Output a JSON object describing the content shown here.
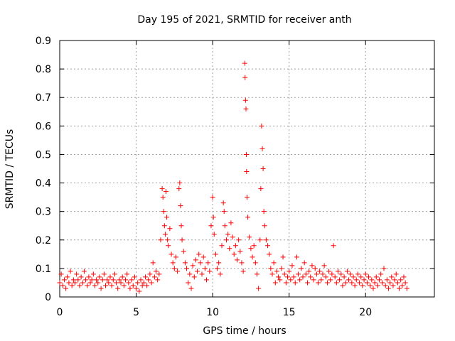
{
  "chart_data": {
    "type": "scatter",
    "title": "Day 195 of 2021, SRMTID for receiver anth",
    "xlabel": "GPS time / hours",
    "ylabel": "SRMTID / TECUs",
    "xlim": [
      0,
      24.5
    ],
    "ylim": [
      0,
      0.9
    ],
    "xticks": [
      0,
      5,
      10,
      15,
      20
    ],
    "xtick_labels": [
      "0",
      "5",
      "10",
      "15",
      "20"
    ],
    "yticks": [
      0,
      0.1,
      0.2,
      0.3,
      0.4,
      0.5,
      0.6,
      0.7,
      0.8,
      0.9
    ],
    "ytick_labels": [
      "0",
      "0.1",
      "0.2",
      "0.3",
      "0.4",
      "0.5",
      "0.6",
      "0.7",
      "0.8",
      "0.9"
    ],
    "grid": true,
    "marker": "+",
    "color": "#ff0000",
    "series": [
      {
        "name": "SRMTID",
        "points": [
          [
            0.0,
            0.05
          ],
          [
            0.1,
            0.08
          ],
          [
            0.2,
            0.04
          ],
          [
            0.3,
            0.06
          ],
          [
            0.4,
            0.03
          ],
          [
            0.5,
            0.07
          ],
          [
            0.6,
            0.05
          ],
          [
            0.7,
            0.09
          ],
          [
            0.8,
            0.04
          ],
          [
            0.9,
            0.06
          ],
          [
            1.0,
            0.05
          ],
          [
            1.1,
            0.08
          ],
          [
            1.2,
            0.06
          ],
          [
            1.3,
            0.04
          ],
          [
            1.4,
            0.07
          ],
          [
            1.5,
            0.05
          ],
          [
            1.6,
            0.09
          ],
          [
            1.7,
            0.06
          ],
          [
            1.8,
            0.04
          ],
          [
            1.9,
            0.07
          ],
          [
            2.0,
            0.05
          ],
          [
            2.1,
            0.06
          ],
          [
            2.2,
            0.08
          ],
          [
            2.3,
            0.04
          ],
          [
            2.4,
            0.06
          ],
          [
            2.5,
            0.05
          ],
          [
            2.6,
            0.07
          ],
          [
            2.7,
            0.03
          ],
          [
            2.8,
            0.06
          ],
          [
            2.9,
            0.08
          ],
          [
            3.0,
            0.04
          ],
          [
            3.1,
            0.06
          ],
          [
            3.2,
            0.05
          ],
          [
            3.3,
            0.07
          ],
          [
            3.4,
            0.04
          ],
          [
            3.5,
            0.06
          ],
          [
            3.6,
            0.08
          ],
          [
            3.7,
            0.05
          ],
          [
            3.8,
            0.03
          ],
          [
            3.9,
            0.06
          ],
          [
            4.0,
            0.05
          ],
          [
            4.1,
            0.07
          ],
          [
            4.2,
            0.04
          ],
          [
            4.3,
            0.06
          ],
          [
            4.4,
            0.08
          ],
          [
            4.5,
            0.05
          ],
          [
            4.6,
            0.03
          ],
          [
            4.7,
            0.06
          ],
          [
            4.8,
            0.04
          ],
          [
            4.9,
            0.07
          ],
          [
            5.0,
            0.03
          ],
          [
            5.1,
            0.05
          ],
          [
            5.2,
            0.02
          ],
          [
            5.3,
            0.06
          ],
          [
            5.4,
            0.04
          ],
          [
            5.5,
            0.05
          ],
          [
            5.6,
            0.07
          ],
          [
            5.7,
            0.04
          ],
          [
            5.8,
            0.06
          ],
          [
            5.9,
            0.08
          ],
          [
            6.0,
            0.05
          ],
          [
            6.1,
            0.12
          ],
          [
            6.2,
            0.07
          ],
          [
            6.3,
            0.09
          ],
          [
            6.4,
            0.06
          ],
          [
            6.5,
            0.08
          ],
          [
            6.6,
            0.2
          ],
          [
            6.7,
            0.38
          ],
          [
            6.75,
            0.35
          ],
          [
            6.8,
            0.3
          ],
          [
            6.85,
            0.25
          ],
          [
            6.9,
            0.22
          ],
          [
            6.95,
            0.37
          ],
          [
            7.0,
            0.28
          ],
          [
            7.05,
            0.2
          ],
          [
            7.1,
            0.18
          ],
          [
            7.2,
            0.24
          ],
          [
            7.3,
            0.15
          ],
          [
            7.4,
            0.12
          ],
          [
            7.5,
            0.1
          ],
          [
            7.6,
            0.14
          ],
          [
            7.7,
            0.09
          ],
          [
            7.8,
            0.38
          ],
          [
            7.85,
            0.4
          ],
          [
            7.9,
            0.32
          ],
          [
            7.95,
            0.25
          ],
          [
            8.0,
            0.2
          ],
          [
            8.1,
            0.16
          ],
          [
            8.2,
            0.12
          ],
          [
            8.3,
            0.1
          ],
          [
            8.4,
            0.05
          ],
          [
            8.5,
            0.08
          ],
          [
            8.6,
            0.03
          ],
          [
            8.7,
            0.11
          ],
          [
            8.8,
            0.07
          ],
          [
            8.9,
            0.13
          ],
          [
            9.0,
            0.09
          ],
          [
            9.1,
            0.15
          ],
          [
            9.2,
            0.12
          ],
          [
            9.3,
            0.08
          ],
          [
            9.4,
            0.14
          ],
          [
            9.5,
            0.1
          ],
          [
            9.6,
            0.06
          ],
          [
            9.7,
            0.12
          ],
          [
            9.8,
            0.09
          ],
          [
            9.9,
            0.25
          ],
          [
            10.0,
            0.35
          ],
          [
            10.05,
            0.28
          ],
          [
            10.1,
            0.22
          ],
          [
            10.2,
            0.15
          ],
          [
            10.3,
            0.1
          ],
          [
            10.4,
            0.12
          ],
          [
            10.5,
            0.08
          ],
          [
            10.6,
            0.18
          ],
          [
            10.7,
            0.33
          ],
          [
            10.75,
            0.3
          ],
          [
            10.8,
            0.25
          ],
          [
            10.9,
            0.2
          ],
          [
            11.0,
            0.22
          ],
          [
            11.1,
            0.17
          ],
          [
            11.2,
            0.26
          ],
          [
            11.3,
            0.21
          ],
          [
            11.4,
            0.15
          ],
          [
            11.5,
            0.18
          ],
          [
            11.6,
            0.13
          ],
          [
            11.7,
            0.2
          ],
          [
            11.8,
            0.16
          ],
          [
            11.9,
            0.12
          ],
          [
            12.0,
            0.09
          ],
          [
            12.1,
            0.82
          ],
          [
            12.12,
            0.77
          ],
          [
            12.15,
            0.69
          ],
          [
            12.18,
            0.66
          ],
          [
            12.2,
            0.5
          ],
          [
            12.22,
            0.44
          ],
          [
            12.25,
            0.35
          ],
          [
            12.3,
            0.28
          ],
          [
            12.4,
            0.21
          ],
          [
            12.5,
            0.17
          ],
          [
            12.6,
            0.14
          ],
          [
            12.7,
            0.18
          ],
          [
            12.8,
            0.12
          ],
          [
            12.9,
            0.08
          ],
          [
            13.0,
            0.03
          ],
          [
            13.1,
            0.2
          ],
          [
            13.15,
            0.38
          ],
          [
            13.2,
            0.6
          ],
          [
            13.25,
            0.52
          ],
          [
            13.3,
            0.45
          ],
          [
            13.35,
            0.3
          ],
          [
            13.4,
            0.25
          ],
          [
            13.5,
            0.2
          ],
          [
            13.6,
            0.18
          ],
          [
            13.7,
            0.15
          ],
          [
            13.8,
            0.1
          ],
          [
            13.9,
            0.08
          ],
          [
            14.0,
            0.12
          ],
          [
            14.1,
            0.05
          ],
          [
            14.2,
            0.09
          ],
          [
            14.3,
            0.07
          ],
          [
            14.4,
            0.06
          ],
          [
            14.5,
            0.1
          ],
          [
            14.6,
            0.14
          ],
          [
            14.7,
            0.08
          ],
          [
            14.8,
            0.05
          ],
          [
            14.9,
            0.07
          ],
          [
            15.0,
            0.09
          ],
          [
            15.1,
            0.06
          ],
          [
            15.2,
            0.11
          ],
          [
            15.3,
            0.07
          ],
          [
            15.4,
            0.05
          ],
          [
            15.5,
            0.14
          ],
          [
            15.6,
            0.08
          ],
          [
            15.7,
            0.06
          ],
          [
            15.8,
            0.1
          ],
          [
            15.9,
            0.07
          ],
          [
            16.0,
            0.12
          ],
          [
            16.1,
            0.08
          ],
          [
            16.2,
            0.05
          ],
          [
            16.3,
            0.09
          ],
          [
            16.4,
            0.07
          ],
          [
            16.5,
            0.11
          ],
          [
            16.6,
            0.06
          ],
          [
            16.7,
            0.1
          ],
          [
            16.8,
            0.08
          ],
          [
            16.9,
            0.05
          ],
          [
            17.0,
            0.09
          ],
          [
            17.1,
            0.06
          ],
          [
            17.2,
            0.08
          ],
          [
            17.3,
            0.11
          ],
          [
            17.4,
            0.07
          ],
          [
            17.5,
            0.05
          ],
          [
            17.6,
            0.09
          ],
          [
            17.7,
            0.06
          ],
          [
            17.8,
            0.08
          ],
          [
            17.9,
            0.18
          ],
          [
            18.0,
            0.07
          ],
          [
            18.1,
            0.05
          ],
          [
            18.2,
            0.09
          ],
          [
            18.3,
            0.06
          ],
          [
            18.4,
            0.08
          ],
          [
            18.5,
            0.04
          ],
          [
            18.6,
            0.07
          ],
          [
            18.7,
            0.05
          ],
          [
            18.8,
            0.09
          ],
          [
            18.9,
            0.06
          ],
          [
            19.0,
            0.08
          ],
          [
            19.1,
            0.05
          ],
          [
            19.2,
            0.07
          ],
          [
            19.3,
            0.04
          ],
          [
            19.4,
            0.06
          ],
          [
            19.5,
            0.08
          ],
          [
            19.6,
            0.05
          ],
          [
            19.7,
            0.07
          ],
          [
            19.8,
            0.04
          ],
          [
            19.9,
            0.06
          ],
          [
            20.0,
            0.08
          ],
          [
            20.1,
            0.05
          ],
          [
            20.2,
            0.07
          ],
          [
            20.3,
            0.04
          ],
          [
            20.4,
            0.06
          ],
          [
            20.5,
            0.03
          ],
          [
            20.6,
            0.05
          ],
          [
            20.7,
            0.07
          ],
          [
            20.8,
            0.04
          ],
          [
            20.9,
            0.06
          ],
          [
            21.0,
            0.08
          ],
          [
            21.1,
            0.05
          ],
          [
            21.2,
            0.1
          ],
          [
            21.3,
            0.04
          ],
          [
            21.4,
            0.06
          ],
          [
            21.5,
            0.03
          ],
          [
            21.6,
            0.05
          ],
          [
            21.7,
            0.07
          ],
          [
            21.8,
            0.04
          ],
          [
            21.9,
            0.06
          ],
          [
            22.0,
            0.08
          ],
          [
            22.1,
            0.05
          ],
          [
            22.2,
            0.03
          ],
          [
            22.3,
            0.06
          ],
          [
            22.4,
            0.04
          ],
          [
            22.5,
            0.07
          ],
          [
            22.6,
            0.05
          ],
          [
            22.7,
            0.03
          ]
        ]
      }
    ]
  }
}
